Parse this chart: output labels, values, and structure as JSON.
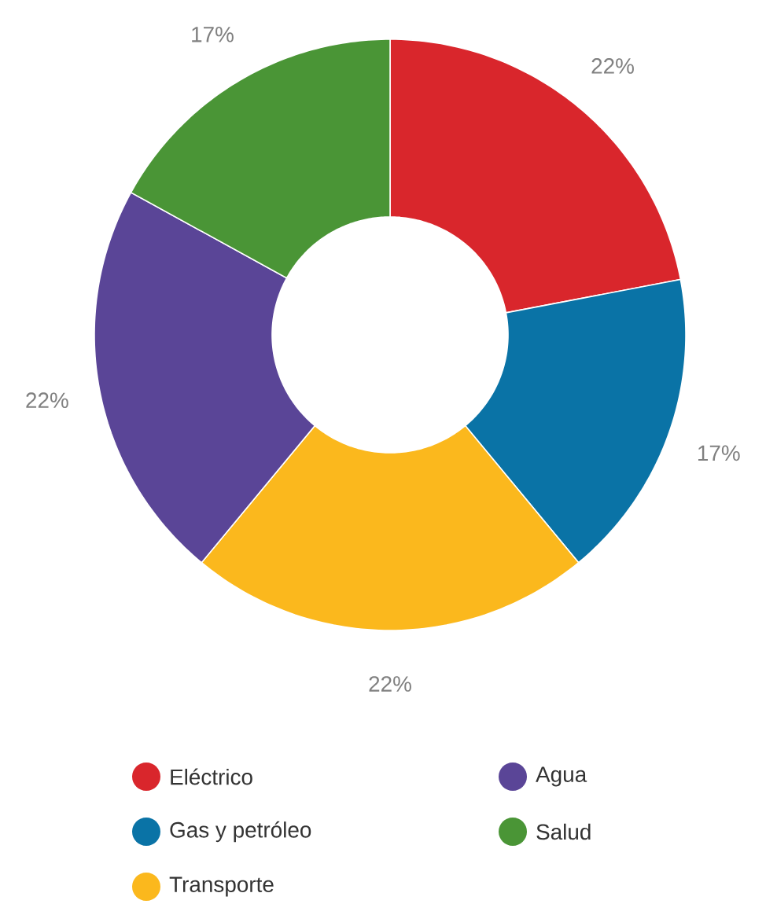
{
  "chart_data": {
    "type": "donut",
    "categories": [
      "Eléctrico",
      "Gas y petróleo",
      "Transporte",
      "Agua",
      "Salud"
    ],
    "values": [
      22,
      17,
      22,
      22,
      17
    ],
    "value_labels": [
      "22%",
      "17%",
      "22%",
      "22%",
      "17%"
    ],
    "colors": [
      "#d9262c",
      "#0a73a6",
      "#fbb81d",
      "#5a4597",
      "#4a9536"
    ],
    "legend": "bottom"
  }
}
